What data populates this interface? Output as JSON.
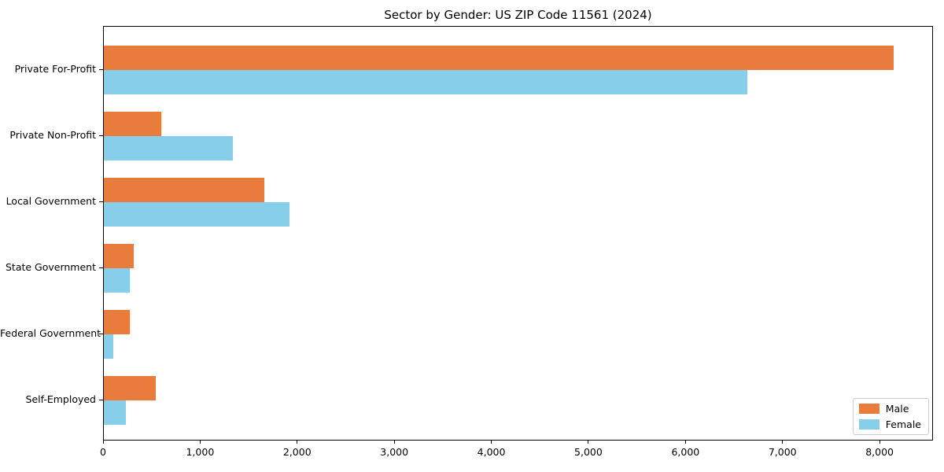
{
  "chart_data": {
    "type": "bar",
    "orientation": "horizontal",
    "title": "Sector by Gender: US ZIP Code 11561 (2024)",
    "categories": [
      "Private For-Profit",
      "Private Non-Profit",
      "Local Government",
      "State Government",
      "Federal Government",
      "Self-Employed"
    ],
    "series": [
      {
        "name": "Male",
        "color": "#e97c3c",
        "values": [
          8140,
          595,
          1655,
          310,
          270,
          535
        ]
      },
      {
        "name": "Female",
        "color": "#87ceeb",
        "values": [
          6630,
          1330,
          1910,
          270,
          100,
          230
        ]
      }
    ],
    "xlabel": "",
    "ylabel": "",
    "xlim": [
      0,
      8550
    ],
    "x_ticks": [
      0,
      1000,
      2000,
      3000,
      4000,
      5000,
      6000,
      7000,
      8000
    ],
    "x_tick_labels": [
      "0",
      "1,000",
      "2,000",
      "3,000",
      "4,000",
      "5,000",
      "6,000",
      "7,000",
      "8,000"
    ],
    "grid": false,
    "legend_position": "lower right",
    "axis_color": "#000000",
    "background_color": "#ffffff"
  }
}
